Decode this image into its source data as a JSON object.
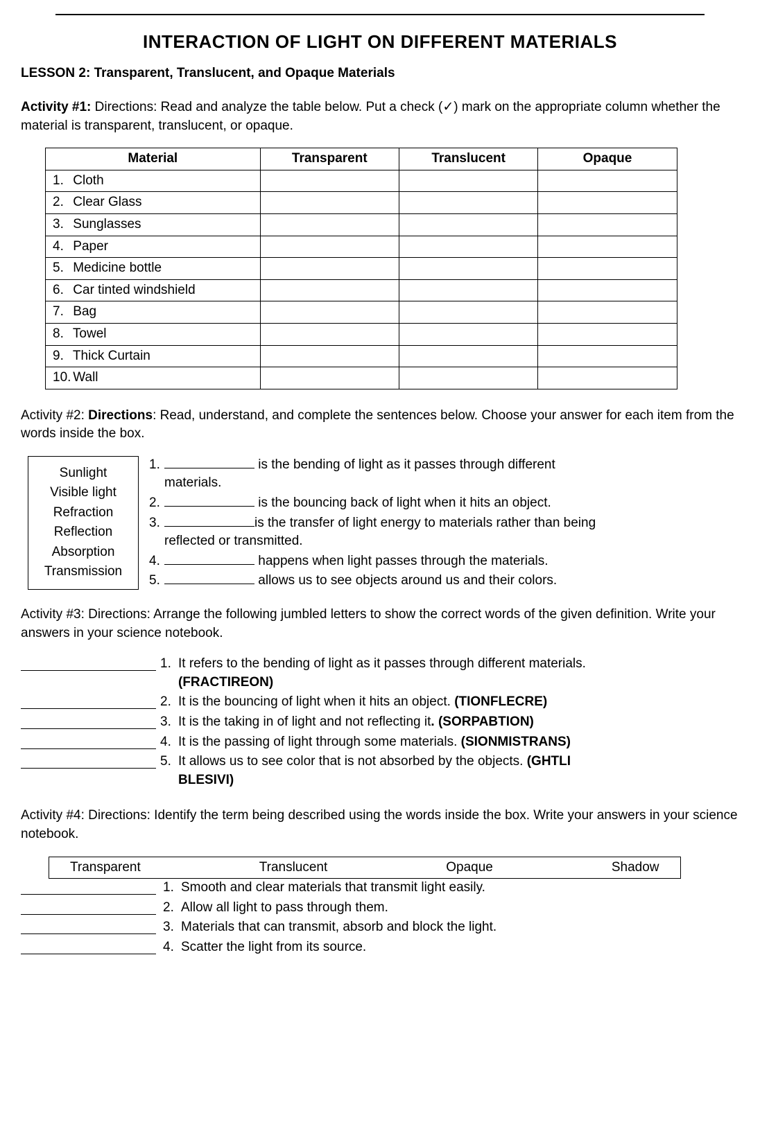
{
  "title": "INTERACTION OF LIGHT ON DIFFERENT MATERIALS",
  "lesson": "LESSON 2: Transparent, Translucent, and Opaque Materials",
  "activity1": {
    "label": "Activity #1:",
    "directions": " Directions: Read and analyze the table below. Put a check (✓) mark on the appropriate column whether the material is transparent, translucent, or opaque.",
    "headers": [
      "Material",
      "Transparent",
      "Translucent",
      "Opaque"
    ],
    "rows": [
      {
        "n": "1.",
        "name": "Cloth"
      },
      {
        "n": "2.",
        "name": "Clear Glass"
      },
      {
        "n": "3.",
        "name": "Sunglasses"
      },
      {
        "n": "4.",
        "name": "Paper"
      },
      {
        "n": "5.",
        "name": "Medicine bottle"
      },
      {
        "n": "6.",
        "name": "Car tinted windshield"
      },
      {
        "n": "7.",
        "name": "Bag"
      },
      {
        "n": "8.",
        "name": "Towel"
      },
      {
        "n": "9.",
        "name": "Thick Curtain"
      },
      {
        "n": "10.",
        "name": "Wall"
      }
    ]
  },
  "activity2": {
    "intro_pre": "Activity #2: ",
    "intro_bold": "Directions",
    "intro_post": ": Read, understand, and complete the sentences below. Choose your answer for each item from the words inside the box.",
    "words": [
      "Sunlight",
      "Visible light",
      "Refraction",
      "Reflection",
      "Absorption",
      "Transmission"
    ],
    "items": [
      {
        "n": "1.",
        "post": " is the bending of light as it passes through different materials."
      },
      {
        "n": "2.",
        "post": " is the bouncing back of light when it hits an object."
      },
      {
        "n": "3.",
        "post": "is the transfer of light energy to materials rather than being reflected or transmitted."
      },
      {
        "n": "4.",
        "post": " happens when light passes through the materials."
      },
      {
        "n": "5.",
        "post": " allows us to see objects around us and their colors."
      }
    ]
  },
  "activity3": {
    "intro": "Activity #3: Directions: Arrange the following jumbled letters to show the correct words of the given definition. Write your answers in your science notebook.",
    "items": [
      {
        "n": "1.",
        "text": "It refers to the bending of light as it passes through different materials.",
        "word": "(FRACTIREON)"
      },
      {
        "n": "2.",
        "text": "It is the bouncing of light when it hits an object. ",
        "word": "(TIONFLECRE)"
      },
      {
        "n": "3.",
        "text_pre": "It is the taking in of light and not reflecting it",
        "text_bold": ". (SORPABTION)"
      },
      {
        "n": "4.",
        "text": "It is the passing of light through some materials. ",
        "word": "(SIONMISTRANS)"
      },
      {
        "n": "5.",
        "text": "It allows us to see color that is not absorbed by the objects. ",
        "word": "(GHTLI BLESIVI)"
      }
    ]
  },
  "activity4": {
    "intro": "Activity #4: Directions: Identify the term being described using the words inside the box. Write your answers in your science notebook.",
    "box": [
      "Transparent",
      "Translucent",
      "Opaque",
      "Shadow"
    ],
    "items": [
      {
        "n": "1.",
        "text": "Smooth and clear materials that transmit light easily."
      },
      {
        "n": "2.",
        "text": "Allow all light to pass through them."
      },
      {
        "n": "3.",
        "text": "Materials that can transmit, absorb and block the light."
      },
      {
        "n": "4.",
        "text": "Scatter the light from its source."
      }
    ]
  }
}
